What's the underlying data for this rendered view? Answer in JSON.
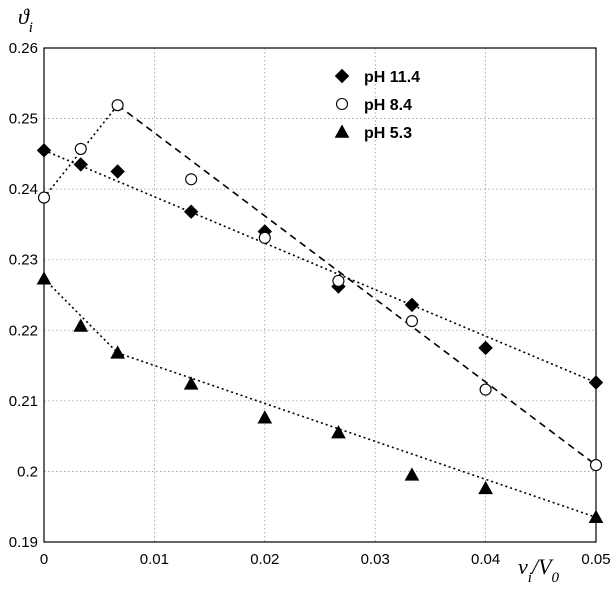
{
  "chart_data": {
    "type": "scatter",
    "title": "",
    "ylabel": {
      "main": "ϑ",
      "sub": "i"
    },
    "xlabel": {
      "v": "v",
      "v_sub": "i",
      "slash": "/",
      "V": "V",
      "V_sub": "0"
    },
    "xlim": [
      0,
      0.05
    ],
    "ylim": [
      0.19,
      0.26
    ],
    "xticks": [
      0,
      0.01,
      0.02,
      0.03,
      0.04,
      0.05
    ],
    "xtick_labels": [
      "0",
      "0.01",
      "0.02",
      "0.03",
      "0.04",
      "0.05"
    ],
    "yticks": [
      0.19,
      0.2,
      0.21,
      0.22,
      0.23,
      0.24,
      0.25,
      0.26
    ],
    "ytick_labels": [
      "0.19",
      "0.2",
      "0.21",
      "0.22",
      "0.23",
      "0.24",
      "0.25",
      "0.26"
    ],
    "grid": true,
    "legend_position": "top-right",
    "series": [
      {
        "name": "pH 11.4",
        "marker": "diamond",
        "fill": "#000000",
        "x": [
          0,
          0.00333,
          0.00667,
          0.01333,
          0.02,
          0.02667,
          0.03333,
          0.04,
          0.05
        ],
        "y": [
          0.2455,
          0.2435,
          0.2425,
          0.2368,
          0.234,
          0.2262,
          0.2236,
          0.2175,
          0.2126
        ]
      },
      {
        "name": "pH 8.4",
        "marker": "circle-open",
        "fill": "#ffffff",
        "x": [
          0,
          0.00333,
          0.00667,
          0.01333,
          0.02,
          0.02667,
          0.03333,
          0.04,
          0.05
        ],
        "y": [
          0.2388,
          0.2457,
          0.2519,
          0.2414,
          0.2331,
          0.227,
          0.2213,
          0.2116,
          0.2009
        ]
      },
      {
        "name": "pH 5.3",
        "marker": "triangle",
        "fill": "#000000",
        "x": [
          0,
          0.00333,
          0.00667,
          0.01333,
          0.02,
          0.02667,
          0.03333,
          0.04,
          0.05
        ],
        "y": [
          0.2273,
          0.2206,
          0.2168,
          0.2124,
          0.2076,
          0.2055,
          0.1995,
          0.1976,
          0.1935
        ]
      }
    ],
    "trend_lines": [
      {
        "series": "pH 11.4",
        "style": "dotted",
        "points": [
          [
            0,
            0.2455
          ],
          [
            0.05,
            0.2126
          ]
        ]
      },
      {
        "series": "pH 8.4",
        "style": "dotted",
        "points": [
          [
            0,
            0.2388
          ],
          [
            0.00667,
            0.2519
          ]
        ]
      },
      {
        "series": "pH 8.4",
        "style": "dashed",
        "points": [
          [
            0.00667,
            0.2519
          ],
          [
            0.05,
            0.2009
          ]
        ]
      },
      {
        "series": "pH 5.3",
        "style": "dotted",
        "points": [
          [
            0,
            0.2273
          ],
          [
            0.00667,
            0.2168
          ]
        ]
      },
      {
        "series": "pH 5.3",
        "style": "dotted",
        "points": [
          [
            0.00667,
            0.2168
          ],
          [
            0.05,
            0.1935
          ]
        ]
      }
    ]
  }
}
